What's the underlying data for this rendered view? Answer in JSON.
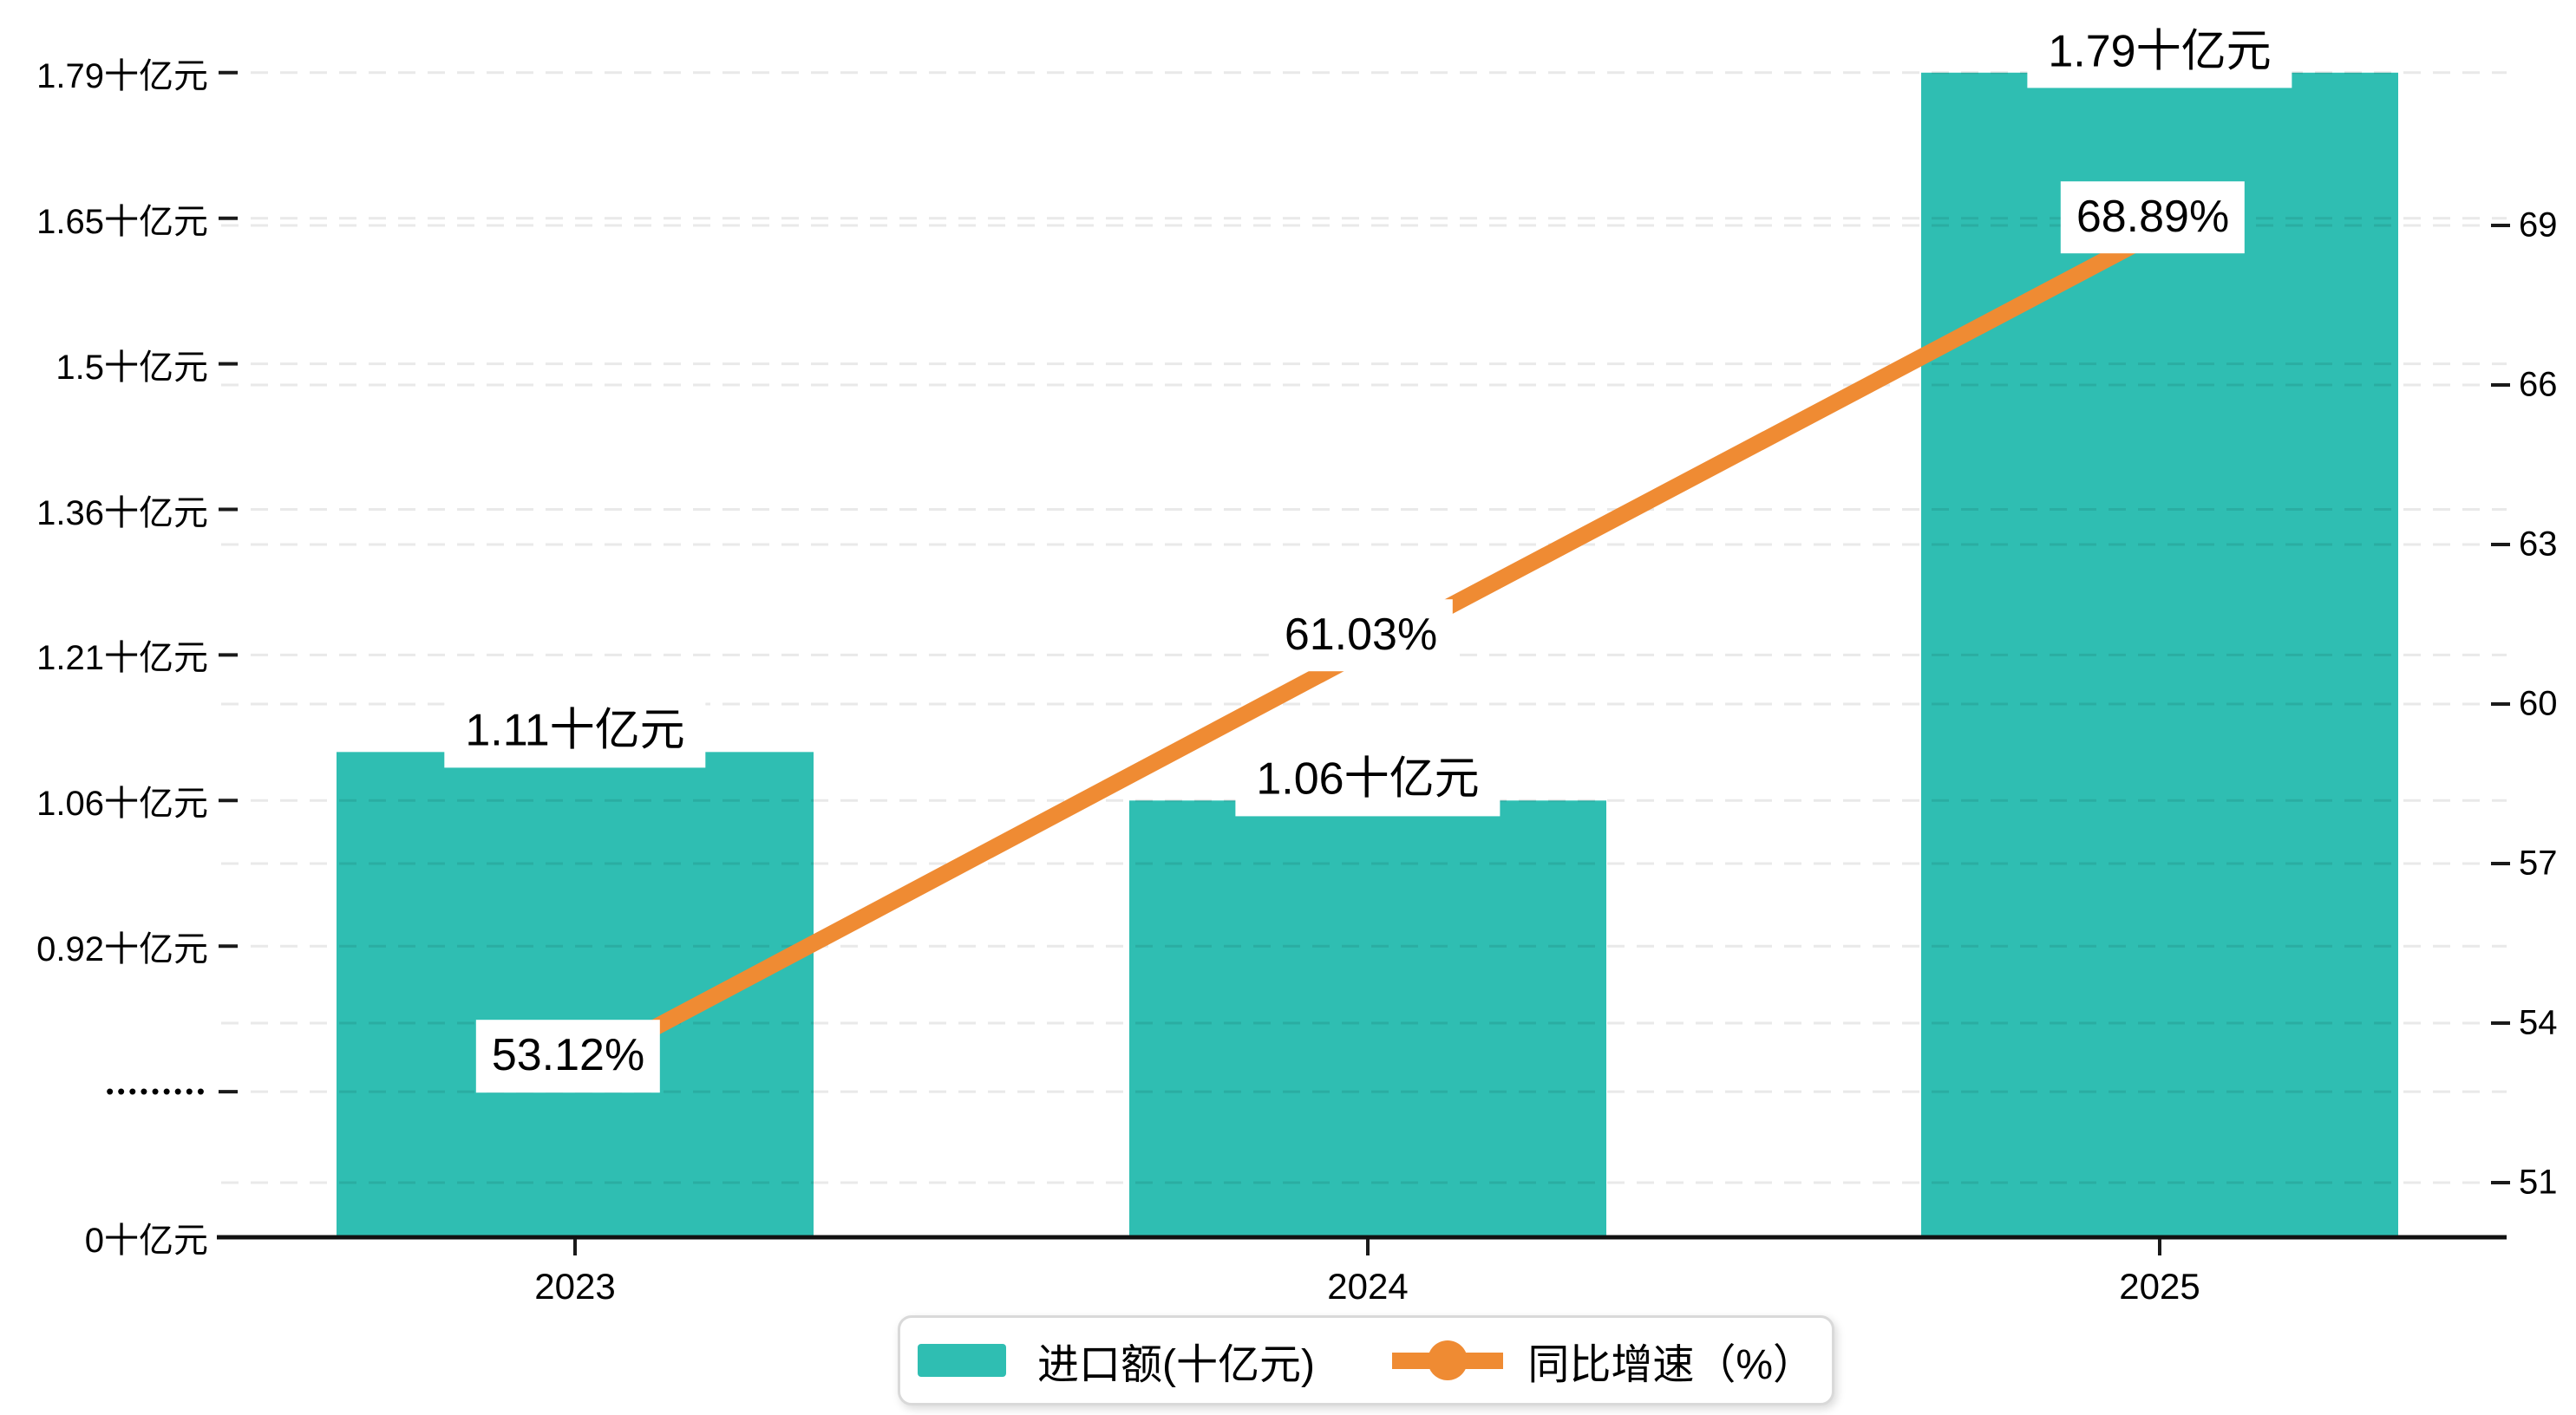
{
  "chart_data": {
    "type": "bar",
    "title": "",
    "categories": [
      "2023",
      "2024",
      "2025"
    ],
    "series": [
      {
        "name": "进口额(十亿元)",
        "type": "bar",
        "axis": "left",
        "color": "#2fbeb2",
        "values": [
          1.11,
          1.06,
          1.79
        ],
        "data_labels": [
          "1.11十亿元",
          "1.06十亿元",
          "1.79十亿元"
        ]
      },
      {
        "name": "同比增速（%）",
        "type": "line",
        "axis": "right",
        "color": "#ef8b33",
        "values": [
          53.12,
          61.03,
          68.89
        ],
        "data_labels": [
          "53.12%",
          "61.03%",
          "68.89%"
        ]
      }
    ],
    "left_axis": {
      "tick_labels": [
        "0十亿元",
        "•••••••••",
        "0.92十亿元",
        "1.06十亿元",
        "1.21十亿元",
        "1.36十亿元",
        "1.5十亿元",
        "1.65十亿元",
        "1.79十亿元"
      ],
      "tick_values": [
        0,
        null,
        0.92,
        1.06,
        1.21,
        1.36,
        1.5,
        1.65,
        1.79
      ],
      "axis_break_index": 1
    },
    "right_axis": {
      "tick_labels": [
        "51",
        "54",
        "57",
        "60",
        "63",
        "66",
        "69"
      ],
      "tick_values": [
        51,
        54,
        57,
        60,
        63,
        66,
        69
      ],
      "range": [
        51,
        69
      ]
    },
    "grid": true,
    "legend_position": "bottom",
    "xlabel": "",
    "ylabel": ""
  },
  "colors": {
    "bar": "#2fbeb2",
    "line": "#ef8b33",
    "grid": "rgba(0,0,0,0.085)",
    "axis": "#111111",
    "tick": "#1a1a1a",
    "text": "#000000",
    "label_bg": "#ffffff",
    "legend_border": "#d9d9d9",
    "background": "#ffffff"
  }
}
